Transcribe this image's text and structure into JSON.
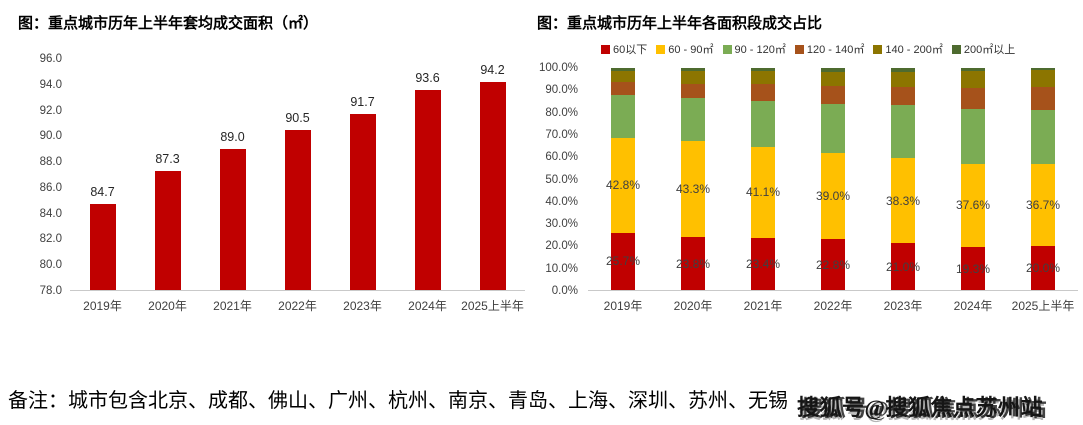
{
  "note": "备注：城市包含北京、成都、佛山、广州、杭州、南京、青岛、上海、深圳、苏州、无锡",
  "watermark": "搜狐号@搜狐焦点苏州站",
  "chart_data": [
    {
      "type": "bar",
      "title": "图：重点城市历年上半年套均成交面积（㎡）",
      "categories": [
        "2019年",
        "2020年",
        "2021年",
        "2022年",
        "2023年",
        "2024年",
        "2025上半年"
      ],
      "values": [
        84.7,
        87.3,
        89.0,
        90.5,
        91.7,
        93.6,
        94.2
      ],
      "bar_color": "#C00000",
      "ylim": [
        78.0,
        96.0
      ],
      "yticks": [
        "96.0",
        "94.0",
        "92.0",
        "90.0",
        "88.0",
        "86.0",
        "84.0",
        "82.0",
        "80.0",
        "78.0"
      ],
      "grid": false,
      "data_labels": true,
      "legend_position": "none"
    },
    {
      "type": "stacked-bar-percent",
      "title": "图：重点城市历年上半年各面积段成交占比",
      "categories": [
        "2019年",
        "2020年",
        "2021年",
        "2022年",
        "2023年",
        "2024年",
        "2025上半年"
      ],
      "series": [
        {
          "name": "60以下",
          "color": "#C00000",
          "labels_shown": true,
          "values": [
            25.7,
            23.8,
            23.4,
            22.8,
            21.0,
            19.3,
            20.0
          ]
        },
        {
          "name": "60 - 90㎡",
          "color": "#FFC000",
          "labels_shown": true,
          "values": [
            42.8,
            43.3,
            41.1,
            39.0,
            38.3,
            37.6,
            36.7
          ]
        },
        {
          "name": "90 - 120㎡",
          "color": "#7BAC54",
          "labels_shown": false,
          "values": [
            19.3,
            19.5,
            20.7,
            21.9,
            23.9,
            24.8,
            24.6
          ]
        },
        {
          "name": "120 - 140㎡",
          "color": "#A6521B",
          "labels_shown": false,
          "values": [
            5.8,
            6.0,
            7.6,
            8.2,
            8.2,
            9.4,
            10.0
          ]
        },
        {
          "name": "140 - 200㎡",
          "color": "#8C7500",
          "labels_shown": false,
          "values": [
            5.2,
            6.2,
            6.0,
            6.5,
            7.0,
            7.7,
            7.7
          ]
        },
        {
          "name": "200㎡以上",
          "color": "#4E6B2F",
          "labels_shown": false,
          "values": [
            1.2,
            1.2,
            1.2,
            1.6,
            1.6,
            1.2,
            1.0
          ]
        }
      ],
      "ylim": [
        0,
        100
      ],
      "yticks": [
        "100.0%",
        "90.0%",
        "80.0%",
        "70.0%",
        "60.0%",
        "50.0%",
        "40.0%",
        "30.0%",
        "20.0%",
        "10.0%",
        "0.0%"
      ],
      "grid": false,
      "legend_position": "top"
    }
  ]
}
